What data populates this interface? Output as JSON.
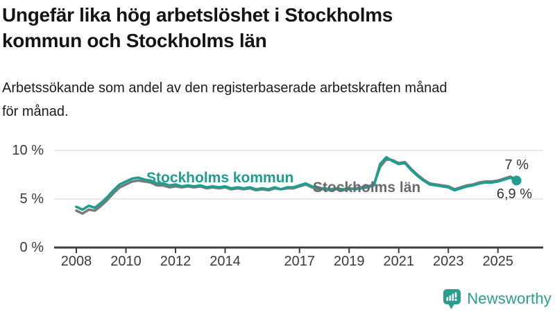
{
  "header": {
    "title_line1": "Ungefär lika hög arbetslöshet i Stockholms",
    "title_line2": "kommun och Stockholms län",
    "subtitle_line1": "Arbetssökande som andel av den registerbaserade arbetskraften månad",
    "subtitle_line2": "för månad."
  },
  "chart_data": {
    "type": "line",
    "x_unit": "decimal_year_quarterly",
    "x": [
      2008,
      2008.25,
      2008.5,
      2008.75,
      2009,
      2009.25,
      2009.5,
      2009.75,
      2010,
      2010.25,
      2010.5,
      2010.75,
      2011,
      2011.25,
      2011.5,
      2011.75,
      2012,
      2012.25,
      2012.5,
      2012.75,
      2013,
      2013.25,
      2013.5,
      2013.75,
      2014,
      2014.25,
      2014.5,
      2014.75,
      2015,
      2015.25,
      2015.5,
      2015.75,
      2016,
      2016.25,
      2016.5,
      2016.75,
      2017,
      2017.25,
      2017.5,
      2017.75,
      2018,
      2018.25,
      2018.5,
      2018.75,
      2019,
      2019.25,
      2019.5,
      2019.75,
      2020,
      2020.25,
      2020.5,
      2020.75,
      2021,
      2021.25,
      2021.5,
      2021.75,
      2022,
      2022.25,
      2022.5,
      2022.75,
      2023,
      2023.25,
      2023.5,
      2023.75,
      2024,
      2024.25,
      2024.5,
      2024.75,
      2025,
      2025.25,
      2025.5,
      2025.75
    ],
    "series": [
      {
        "name": "Stockholms län",
        "label": "Stockholms län",
        "color": "#7a7a7a",
        "end_annotation": "7 %",
        "end_value": 7.0,
        "values": [
          3.8,
          3.5,
          3.9,
          3.8,
          4.3,
          4.9,
          5.6,
          6.2,
          6.5,
          6.8,
          6.9,
          6.8,
          6.7,
          6.4,
          6.4,
          6.2,
          6.3,
          6.2,
          6.3,
          6.2,
          6.3,
          6.1,
          6.2,
          6.1,
          6.2,
          6.0,
          6.1,
          6.0,
          6.1,
          5.9,
          6.0,
          5.9,
          6.1,
          6.0,
          6.1,
          6.1,
          6.3,
          6.5,
          6.2,
          6.0,
          6.0,
          5.9,
          6.0,
          5.9,
          6.0,
          6.1,
          6.2,
          6.3,
          6.5,
          8.3,
          9.1,
          9.0,
          8.7,
          8.8,
          8.1,
          7.5,
          7.0,
          6.6,
          6.5,
          6.4,
          6.3,
          6.0,
          6.2,
          6.4,
          6.5,
          6.7,
          6.8,
          6.8,
          6.9,
          7.1,
          7.3,
          7.0
        ]
      },
      {
        "name": "Stockholms kommun",
        "label": "Stockholms kommun",
        "color": "#1f9e8f",
        "end_annotation": "6,9 %",
        "end_value": 6.9,
        "end_dot": true,
        "values": [
          4.2,
          3.9,
          4.3,
          4.1,
          4.6,
          5.2,
          5.9,
          6.5,
          6.8,
          7.1,
          7.2,
          7.0,
          6.9,
          6.6,
          6.6,
          6.4,
          6.5,
          6.3,
          6.4,
          6.3,
          6.4,
          6.2,
          6.3,
          6.2,
          6.3,
          6.1,
          6.2,
          6.1,
          6.2,
          6.0,
          6.1,
          6.0,
          6.2,
          6.0,
          6.2,
          6.2,
          6.4,
          6.6,
          6.3,
          6.1,
          6.1,
          6.0,
          6.1,
          6.0,
          6.1,
          6.0,
          6.1,
          6.2,
          6.4,
          8.6,
          9.3,
          8.9,
          8.6,
          8.7,
          8.0,
          7.4,
          6.9,
          6.5,
          6.4,
          6.3,
          6.2,
          5.9,
          6.1,
          6.3,
          6.4,
          6.6,
          6.7,
          6.7,
          6.8,
          7.0,
          7.2,
          6.9
        ]
      }
    ],
    "yticks": [
      {
        "value": 10,
        "label": "10 %"
      },
      {
        "value": 5,
        "label": "5 %"
      },
      {
        "value": 0,
        "label": "0 %"
      }
    ],
    "xticks": [
      {
        "value": 2008,
        "label": "2008"
      },
      {
        "value": 2010,
        "label": "2010"
      },
      {
        "value": 2012,
        "label": "2012"
      },
      {
        "value": 2014,
        "label": "2014"
      },
      {
        "value": 2017,
        "label": "2017"
      },
      {
        "value": 2019,
        "label": "2019"
      },
      {
        "value": 2021,
        "label": "2021"
      },
      {
        "value": 2023,
        "label": "2023"
      },
      {
        "value": 2025,
        "label": "2025"
      }
    ],
    "ylim": [
      0,
      10.7
    ],
    "grid": "horizontal",
    "legend": "inline-labels-on-lines",
    "colors": {
      "accent_teal": "#1f9e8f",
      "line_gray": "#7a7a7a",
      "axis_dark": "#3d3d3d",
      "gridline": "#dcdcdc"
    }
  },
  "footer": {
    "brand_name": "Newsworthy",
    "brand_color": "#2a9e8e",
    "icon": "bar-chart-speech-bubble-icon"
  }
}
